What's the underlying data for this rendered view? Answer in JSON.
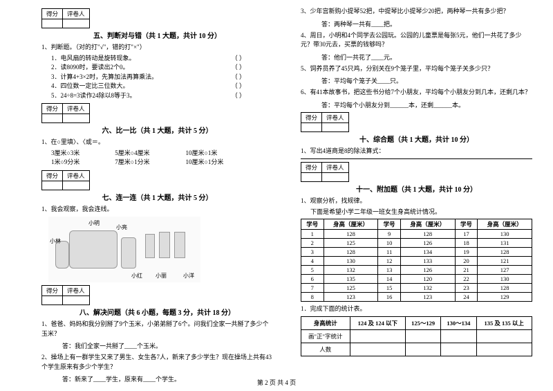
{
  "colors": {
    "text": "#000000",
    "bg": "#ffffff",
    "border": "#000000"
  },
  "font": {
    "family": "SimSun",
    "base_size_pt": 9,
    "title_size_pt": 10
  },
  "scorebox": {
    "c1": "得分",
    "c2": "评卷人"
  },
  "footer": "第 2 页  共 4 页",
  "s5": {
    "title": "五、判断对与错（共 1 大题，共计 10 分）",
    "q1": "1、判断题。（对的打\"√\"，错的打\"×\"）",
    "items": [
      "1．电风扇的转动是旋转现象。",
      "2．读8090时，要读出2个0。",
      "3．计算4+3×2时，先算加法再算乘法。",
      "4．四位数一定比三位数大。",
      "5．24÷8=3读作24除以8等于3。"
    ],
    "paren": "（     ）"
  },
  "s6": {
    "title": "六、比一比（共 1 大题，共计 5 分）",
    "q1": "1、在○里填〉、〈或＝。",
    "rows": [
      [
        "3厘米○3米",
        "5厘米○4厘米",
        "10厘米○1米"
      ],
      [
        "1米○9分米",
        "7厘米○1分米",
        "10厘米○1分米"
      ]
    ]
  },
  "s7": {
    "title": "七、连一连（共 1 大题，共计 5 分）",
    "q1": "1、我会观察，我会连线。",
    "labels": [
      "小明",
      "小亮",
      "小林",
      "小红",
      "小丽",
      "小洋"
    ]
  },
  "s8": {
    "title": "八、解决问题（共 6 小题，每题 3 分，共计 18 分）",
    "q1": "1、爸爸、妈妈和我分别掰了9个玉米，小弟弟掰了6个。问我们全家一共掰了多少个玉米？",
    "a1": "答：我们全家一共掰了____个玉米。",
    "q2": "2、操场上有一群学生又来了男生、女生各7人，新来了多少学生？现在操场上共有43个学生原来有多少个学生？",
    "a2": "答：新来了____学生，原来有____个学生。"
  },
  "right_top": {
    "q3": "3、少年宫新购小提琴52把，中提琴比小提琴少20把，两种琴一共有多少把？",
    "a3": "答：两种琴一共有____把。",
    "q4": "4、周日，小明和4个同学去公园玩。公园的儿童票是每张5元，他们一共花了多少元？带30元去，买票的钱够吗？",
    "a4": "答：他们一共花了____元。",
    "q5": "5、饲养员养了45只鸡，分别关在9个笼子里，平均每个笼子关多少只？",
    "a5": "答：平均每个笼子关____只。",
    "q6": "6、有41本故事书，把这些书分给7个小朋友，平均每个小朋友分到几本，还剩几本？",
    "a6": "答：平均每个小朋友分到______本，还剩______本。"
  },
  "s10": {
    "title": "十、综合题（共 1 大题，共计 10 分）",
    "q1": "1、写出4道商是8的除法算式："
  },
  "s11": {
    "title": "十一、附加题（共 1 大题，共计 10 分）",
    "q1": "1、观察分析，找规律。",
    "sub": "下面是希望小学二年级一班女生身高统计情况。",
    "headers": [
      "学号",
      "身高（厘米）",
      "学号",
      "身高（厘米）",
      "学号",
      "身高（厘米）"
    ],
    "rows": [
      [
        "1",
        "128",
        "9",
        "128",
        "17",
        "130"
      ],
      [
        "2",
        "125",
        "10",
        "126",
        "18",
        "131"
      ],
      [
        "3",
        "128",
        "11",
        "134",
        "19",
        "128"
      ],
      [
        "4",
        "130",
        "12",
        "133",
        "20",
        "121"
      ],
      [
        "5",
        "132",
        "13",
        "126",
        "21",
        "127"
      ],
      [
        "6",
        "135",
        "14",
        "120",
        "22",
        "130"
      ],
      [
        "7",
        "125",
        "15",
        "132",
        "23",
        "128"
      ],
      [
        "8",
        "123",
        "16",
        "123",
        "24",
        "129"
      ]
    ],
    "q1b": "1．完成下面的统计表。",
    "stat_headers": [
      "身高统计",
      "124 及 124 以下",
      "125～129",
      "130～134",
      "135 及 135 以上"
    ],
    "stat_r1": "画\"正\"字统计",
    "stat_r2": "人数"
  }
}
